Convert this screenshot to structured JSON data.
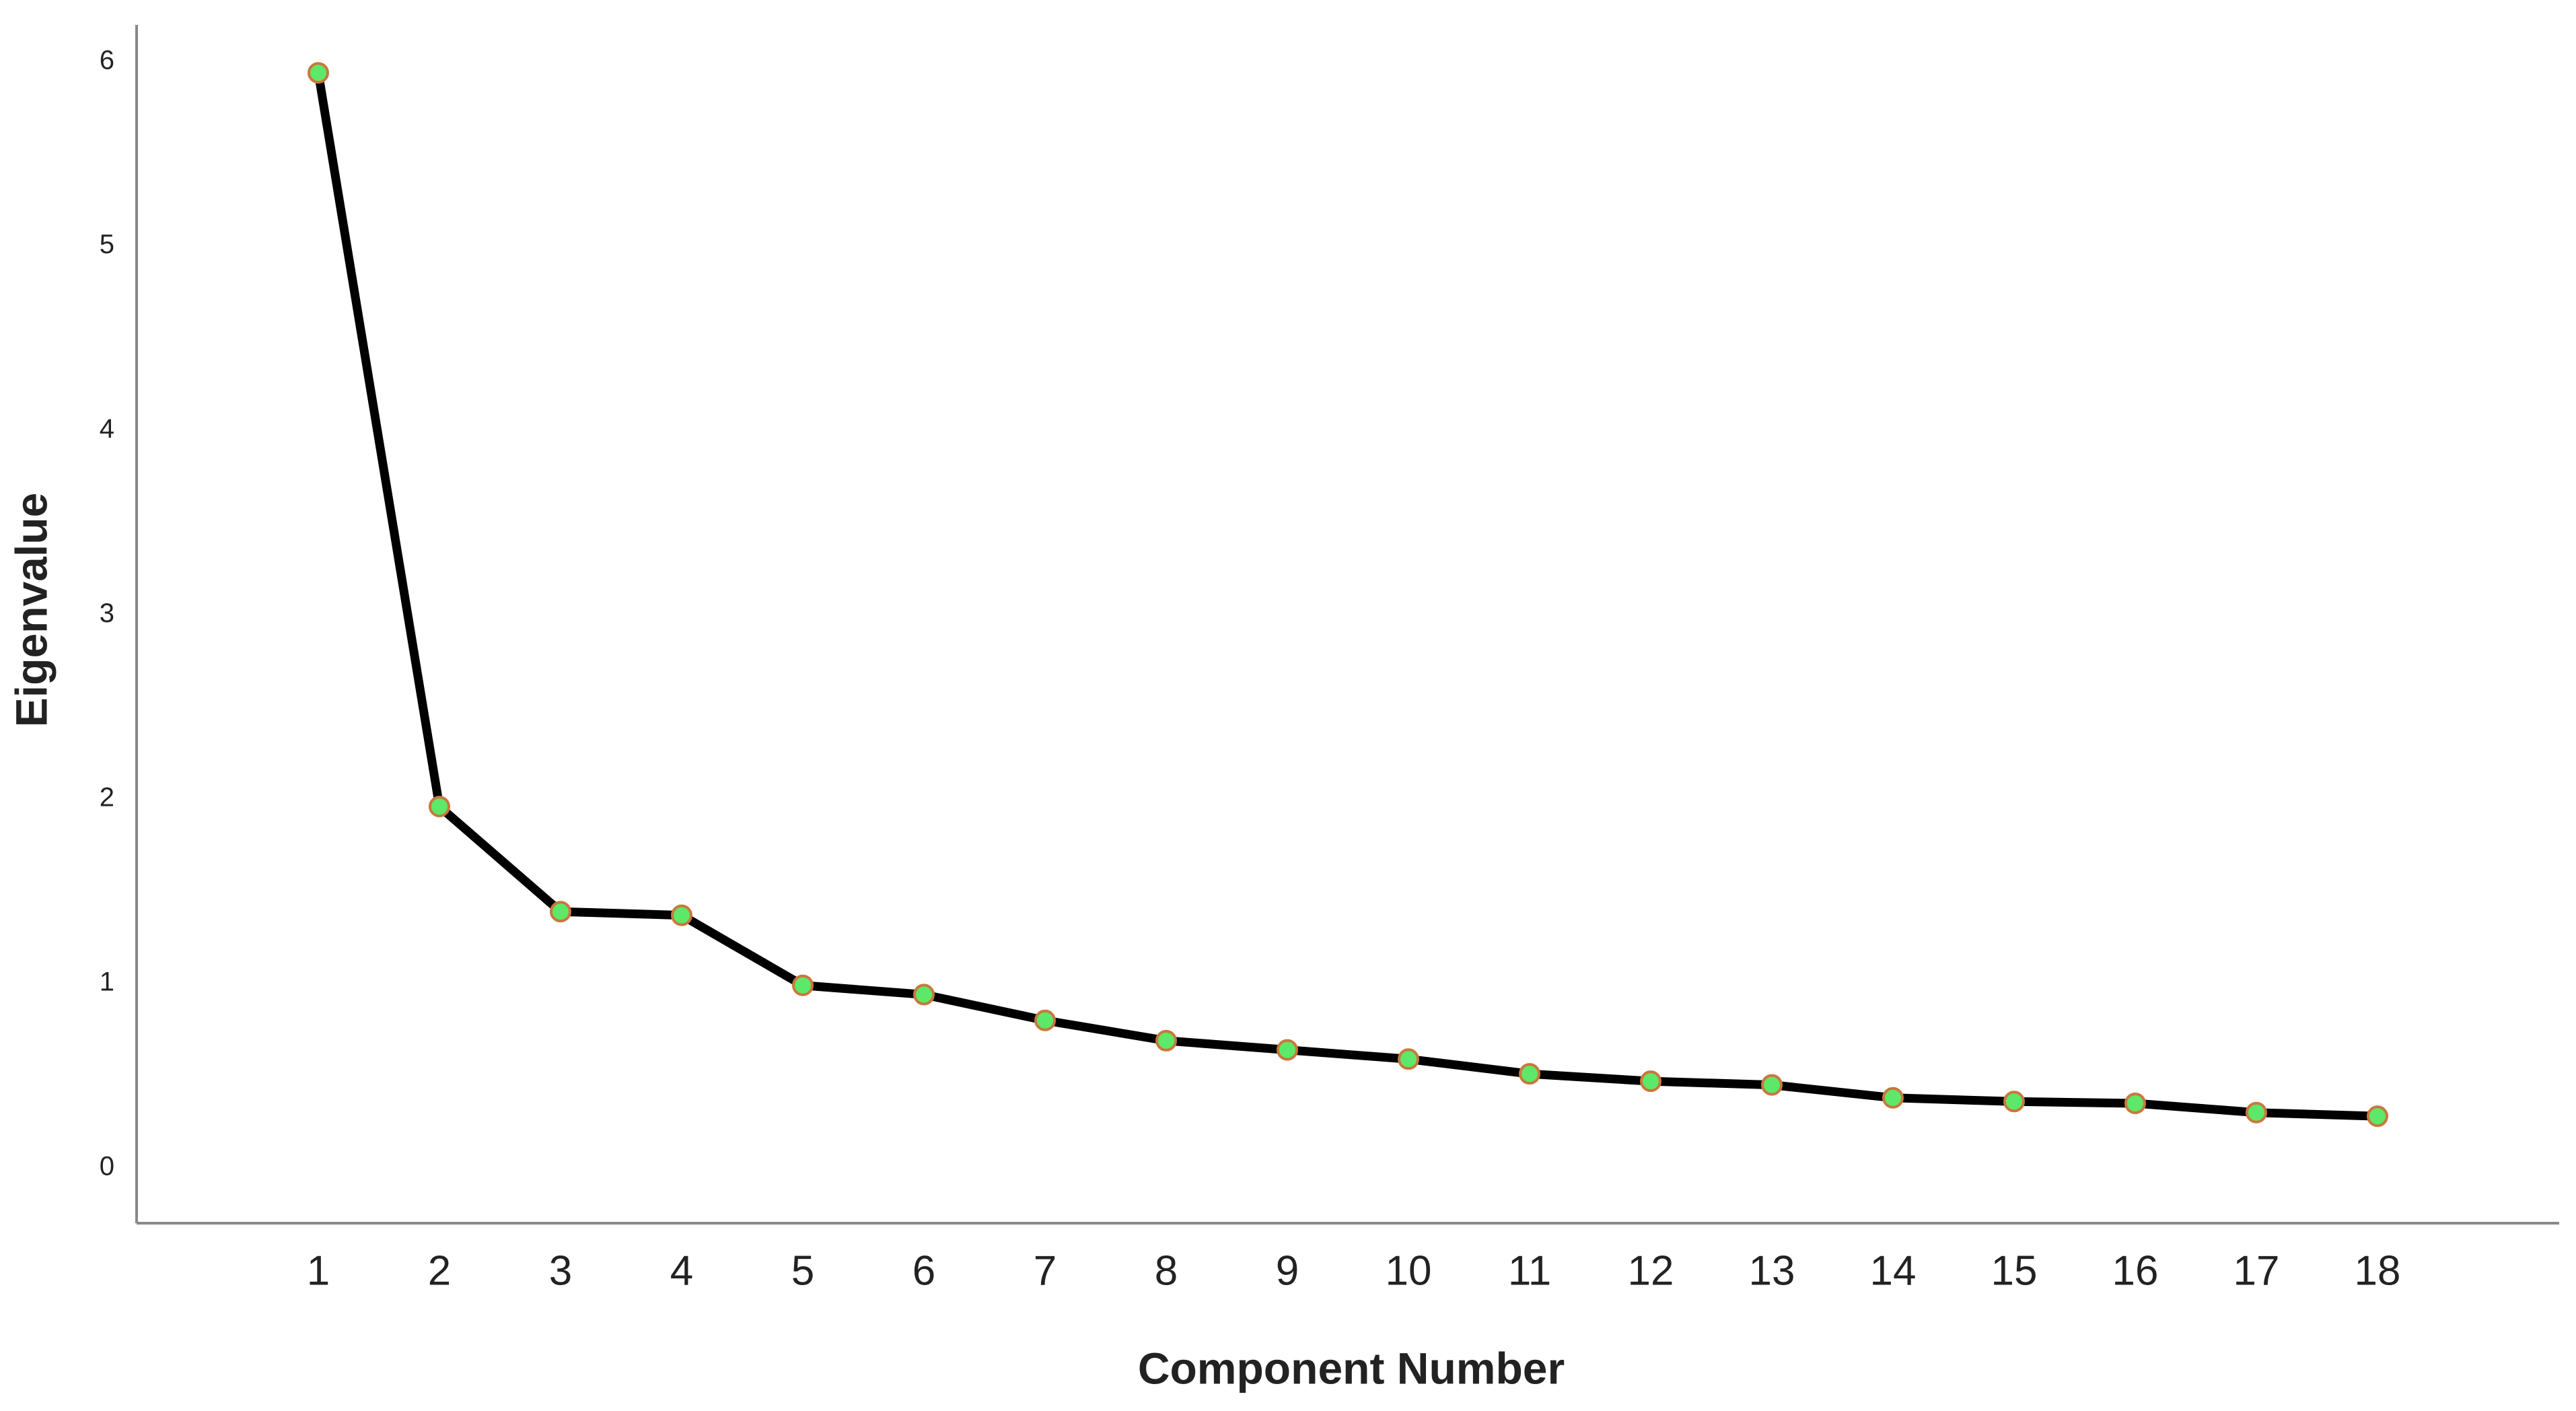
{
  "chart_data": {
    "type": "line",
    "x_label": "Component Number",
    "y_label": "Eigenvalue",
    "x": [
      1,
      2,
      3,
      4,
      5,
      6,
      7,
      8,
      9,
      10,
      11,
      12,
      13,
      14,
      15,
      16,
      17,
      18
    ],
    "series": [
      {
        "color": "#000000",
        "marker_fill": "#5ee86a",
        "marker_edge": "#c8783c",
        "values": [
          5.94,
          1.96,
          1.39,
          1.37,
          0.99,
          0.94,
          0.8,
          0.69,
          0.64,
          0.59,
          0.51,
          0.47,
          0.45,
          0.38,
          0.36,
          0.35,
          0.3,
          0.28
        ]
      }
    ],
    "xlim": [
      -0.5,
      19.5
    ],
    "xticks": [
      1,
      2,
      3,
      4,
      5,
      6,
      7,
      8,
      9,
      10,
      11,
      12,
      13,
      14,
      15,
      16,
      17,
      18
    ],
    "ylim": [
      -0.3,
      6.2
    ],
    "yticks": [
      0,
      1,
      2,
      3,
      4,
      5,
      6
    ],
    "grid": false
  }
}
